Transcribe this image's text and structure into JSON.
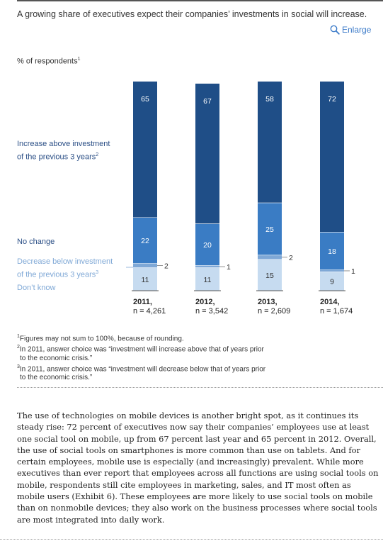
{
  "headline": "A growing share of executives expect their companies’ investments in social will increase.",
  "enlarge_label": "Enlarge",
  "subtitle": "% of respondents",
  "subtitle_sup": "1",
  "legend": {
    "increase": [
      "Increase above investment",
      "of the previous 3 years"
    ],
    "increase_sup": "2",
    "no_change": "No change",
    "decrease": [
      "Decrease below investment",
      "of the previous 3 years"
    ],
    "decrease_sup": "3",
    "dont_know": "Don’t know"
  },
  "colors": {
    "increase": "#1f4e87",
    "no_change": "#3a7cc4",
    "decrease": "#7fa8d6",
    "dont_know": "#c6dbf0"
  },
  "chart_data": {
    "type": "bar",
    "stacked": true,
    "categories": [
      "2011,",
      "2012,",
      "2013,",
      "2014,"
    ],
    "sample_sizes": [
      "n = 4,261",
      "n = 3,542",
      "n = 2,609",
      "n = 1,674"
    ],
    "series": [
      {
        "name": "Don’t know",
        "values": [
          11,
          11,
          15,
          9
        ]
      },
      {
        "name": "Decrease below investment of the previous 3 years",
        "values": [
          2,
          1,
          2,
          1
        ]
      },
      {
        "name": "No change",
        "values": [
          22,
          20,
          25,
          18
        ]
      },
      {
        "name": "Increase above investment of the previous 3 years",
        "values": [
          65,
          67,
          58,
          72
        ]
      }
    ],
    "ylim": [
      0,
      100
    ]
  },
  "footnotes": {
    "f1_sup": "1",
    "f1": "Figures may not sum to 100%, because of rounding.",
    "f2_sup": "2",
    "f2a": "In 2011, answer choice was “investment will increase above that of years prior",
    "f2b": "to the economic crisis.”",
    "f3_sup": "3",
    "f3a": "In 2011, answer choice was “investment will decrease below that of years prior",
    "f3b": "to the economic crisis.”"
  },
  "paragraph": "The use of technologies on mobile devices is another bright spot, as it continues its steady rise: 72 percent of executives now say their companies’ employees use at least one social tool on mobile, up from 67 percent last year and 65 percent in 2012. Overall, the use of social tools on smartphones is more common than use on tablets. And for certain employees, mobile use is especially (and increasingly) prevalent. While more executives than ever report that employees across all functions are using social tools on mobile, respondents still cite employees in marketing, sales, and IT most often as mobile users (Exhibit 6). These employees are more likely to use social tools on mobile than on nonmobile devices; they also work on the business processes where social tools are most integrated into daily work."
}
